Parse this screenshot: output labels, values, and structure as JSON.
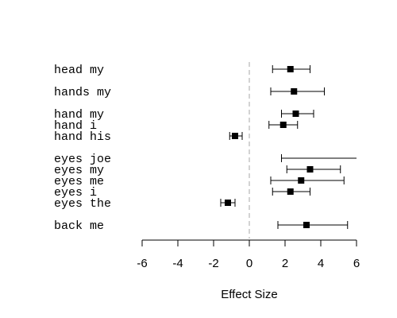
{
  "chart_data": {
    "type": "forest",
    "xlabel": "Effect Size",
    "xlim": [
      -6,
      6
    ],
    "xticks": [
      -6,
      -4,
      -2,
      0,
      2,
      4,
      6
    ],
    "reference_line": 0,
    "grid": false,
    "groups": [
      {
        "rows": [
          {
            "label": "head my",
            "estimate": 2.3,
            "lower": 1.3,
            "upper": 3.4
          }
        ]
      },
      {
        "rows": [
          {
            "label": "hands my",
            "estimate": 2.5,
            "lower": 1.2,
            "upper": 4.2
          }
        ]
      },
      {
        "rows": [
          {
            "label": "hand my",
            "estimate": 2.6,
            "lower": 1.8,
            "upper": 3.6
          },
          {
            "label": "hand i",
            "estimate": 1.9,
            "lower": 1.1,
            "upper": 2.7
          },
          {
            "label": "hand his",
            "estimate": -0.8,
            "lower": -1.1,
            "upper": -0.4
          }
        ]
      },
      {
        "rows": [
          {
            "label": "eyes joe",
            "estimate": null,
            "lower": 1.8,
            "upper": 6.0
          },
          {
            "label": "eyes my",
            "estimate": 3.4,
            "lower": 2.1,
            "upper": 5.1
          },
          {
            "label": "eyes me",
            "estimate": 2.9,
            "lower": 1.2,
            "upper": 5.3
          },
          {
            "label": "eyes i",
            "estimate": 2.3,
            "lower": 1.3,
            "upper": 3.4
          },
          {
            "label": "eyes the",
            "estimate": -1.2,
            "lower": -1.6,
            "upper": -0.8
          }
        ]
      },
      {
        "rows": [
          {
            "label": "back me",
            "estimate": 3.2,
            "lower": 1.6,
            "upper": 5.5
          }
        ]
      }
    ]
  }
}
